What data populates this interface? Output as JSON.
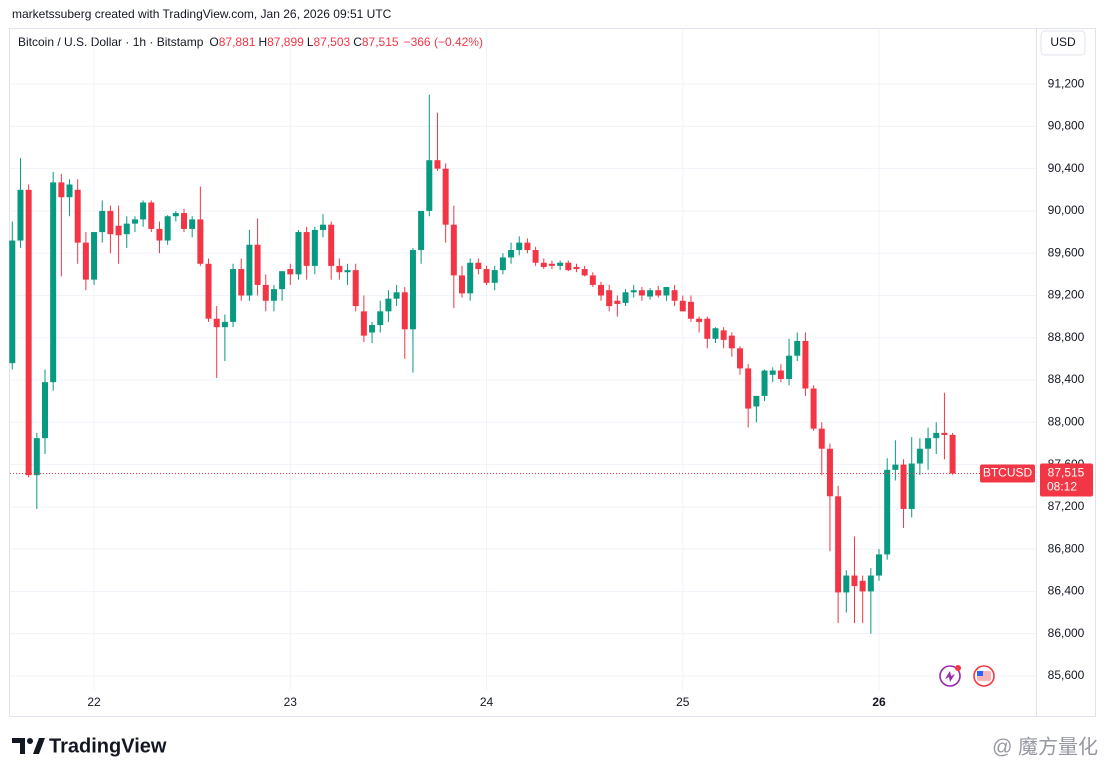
{
  "header": {
    "attribution": "marketssuberg created with TradingView.com, Jan 26, 2026 09:51 UTC",
    "symbol": "Bitcoin / U.S. Dollar · 1h · Bitstamp",
    "ohlc": [
      {
        "key": "O",
        "value": "87,881"
      },
      {
        "key": "H",
        "value": "87,899"
      },
      {
        "key": "L",
        "value": "87,503"
      },
      {
        "key": "C",
        "value": "87,515"
      }
    ],
    "change": "−366 (−0.42%)",
    "currency": "USD"
  },
  "brand": "TradingView",
  "watermark": "@ 魔方量化",
  "chart_data": {
    "type": "candlestick",
    "up_color": "#089981",
    "down_color": "#f23645",
    "grid": true,
    "xlim": [
      -10.28,
      115.2
    ],
    "ylim": [
      85221,
      91731
    ],
    "xticks": [
      {
        "value": 0,
        "label": "22"
      },
      {
        "value": 24,
        "label": "23"
      },
      {
        "value": 48,
        "label": "24"
      },
      {
        "value": 72,
        "label": "25"
      },
      {
        "value": 96,
        "label": "26",
        "bold": true
      }
    ],
    "yticks": [
      {
        "value": 85600,
        "label": "85,600"
      },
      {
        "value": 86000,
        "label": "86,000"
      },
      {
        "value": 86400,
        "label": "86,400"
      },
      {
        "value": 86800,
        "label": "86,800"
      },
      {
        "value": 87200,
        "label": "87,200"
      },
      {
        "value": 87600,
        "label": "87,600"
      },
      {
        "value": 88000,
        "label": "88,000"
      },
      {
        "value": 88400,
        "label": "88,400"
      },
      {
        "value": 88800,
        "label": "88,800"
      },
      {
        "value": 89200,
        "label": "89,200"
      },
      {
        "value": 89600,
        "label": "89,600"
      },
      {
        "value": 90000,
        "label": "90,000"
      },
      {
        "value": 90400,
        "label": "90,400"
      },
      {
        "value": 90800,
        "label": "90,800"
      },
      {
        "value": 91200,
        "label": "91,200"
      }
    ],
    "last_price": {
      "value": 87515,
      "label": "87,515",
      "symbol": "BTCUSD",
      "countdown": "08:12"
    },
    "x": [
      -10,
      -9,
      -8,
      -7,
      -6,
      -5,
      -4,
      -3,
      -2,
      -1,
      0,
      1,
      2,
      3,
      4,
      5,
      6,
      7,
      8,
      9,
      10,
      11,
      12,
      13,
      14,
      15,
      16,
      17,
      18,
      19,
      20,
      21,
      22,
      23,
      24,
      25,
      26,
      27,
      28,
      29,
      30,
      31,
      32,
      33,
      34,
      35,
      36,
      37,
      38,
      39,
      40,
      41,
      42,
      43,
      44,
      45,
      46,
      47,
      48,
      49,
      50,
      51,
      52,
      53,
      54,
      55,
      56,
      57,
      58,
      59,
      60,
      61,
      62,
      63,
      64,
      65,
      66,
      67,
      68,
      69,
      70,
      71,
      72,
      73,
      74,
      75,
      76,
      77,
      78,
      79,
      80,
      81,
      82,
      83,
      84,
      85,
      86,
      87,
      88,
      89,
      90,
      91,
      92,
      93,
      94,
      95,
      96,
      97,
      98,
      99,
      100,
      101,
      102,
      103,
      104,
      105
    ],
    "open": [
      88560,
      89720,
      90200,
      87500,
      87850,
      88380,
      90270,
      90130,
      90200,
      89700,
      89350,
      89800,
      90000,
      89860,
      89780,
      89880,
      89920,
      90080,
      89830,
      89720,
      89950,
      89980,
      89830,
      89920,
      89500,
      88980,
      88900,
      88950,
      89450,
      89200,
      89680,
      89300,
      89150,
      89260,
      89450,
      89400,
      89800,
      89480,
      89820,
      89870,
      89480,
      89420,
      89440,
      89050,
      88850,
      88920,
      89050,
      89170,
      89230,
      88880,
      89630,
      90000,
      90480,
      90400,
      89870,
      89390,
      89220,
      89510,
      89450,
      89320,
      89440,
      89560,
      89630,
      89700,
      89630,
      89510,
      89500,
      89480,
      89510,
      89470,
      89450,
      89390,
      89300,
      89250,
      89150,
      89130,
      89230,
      89250,
      89190,
      89250,
      89200,
      89250,
      89150,
      89140,
      88980,
      88980,
      88790,
      88870,
      88820,
      88700,
      88510,
      88150,
      88250,
      88450,
      88490,
      88410,
      88630,
      88770,
      88320,
      87940,
      87750,
      87300,
      86390,
      86550,
      86500,
      86400,
      86550,
      86750,
      87550,
      87600,
      87180,
      87610,
      87750,
      87850,
      87900,
      87881
    ],
    "high": [
      89900,
      90500,
      90250,
      87900,
      88500,
      90370,
      90350,
      90300,
      90300,
      89800,
      89800,
      90100,
      90050,
      90050,
      89950,
      89950,
      90100,
      90100,
      89900,
      89960,
      90000,
      90020,
      89950,
      90230,
      89550,
      89100,
      89020,
      89500,
      89550,
      89820,
      89930,
      89400,
      89300,
      89400,
      89500,
      89820,
      89850,
      89850,
      89970,
      89900,
      89550,
      89500,
      89500,
      89200,
      88950,
      89150,
      89250,
      89300,
      89280,
      89650,
      90000,
      91100,
      90930,
      90450,
      90050,
      89480,
      89550,
      89550,
      89480,
      89480,
      89600,
      89700,
      89760,
      89740,
      89660,
      89550,
      89530,
      89530,
      89530,
      89500,
      89480,
      89420,
      89330,
      89300,
      89200,
      89260,
      89300,
      89280,
      89270,
      89290,
      89280,
      89300,
      89200,
      89200,
      89000,
      89000,
      88900,
      88900,
      88850,
      88720,
      88550,
      88250,
      88500,
      88520,
      88550,
      88790,
      88850,
      88850,
      88350,
      88000,
      87800,
      87400,
      86600,
      86920,
      86550,
      86620,
      86800,
      87660,
      87830,
      87650,
      87860,
      87850,
      87950,
      88000,
      88280,
      87899
    ],
    "low": [
      88500,
      89650,
      87480,
      87180,
      87700,
      88300,
      89380,
      89950,
      89500,
      89250,
      89300,
      89700,
      89600,
      89500,
      89650,
      89800,
      89850,
      89800,
      89600,
      89680,
      89900,
      89800,
      89750,
      89480,
      88950,
      88420,
      88580,
      88900,
      89150,
      89150,
      89200,
      89050,
      89050,
      89150,
      89300,
      89350,
      89350,
      89400,
      89750,
      89350,
      89350,
      89300,
      89050,
      88760,
      88750,
      88850,
      88950,
      89100,
      88600,
      88470,
      89500,
      89950,
      90380,
      89700,
      89080,
      89180,
      89150,
      89400,
      89300,
      89250,
      89400,
      89500,
      89580,
      89600,
      89480,
      89450,
      89450,
      89440,
      89430,
      89420,
      89380,
      89280,
      89150,
      89050,
      89000,
      89100,
      89180,
      89150,
      89160,
      89180,
      89150,
      89100,
      89050,
      88950,
      88850,
      88700,
      88750,
      88700,
      88620,
      88450,
      87950,
      88000,
      88200,
      88380,
      88380,
      88350,
      88580,
      88250,
      87920,
      87500,
      86780,
      86100,
      86200,
      86100,
      86100,
      86000,
      86500,
      86700,
      87450,
      87000,
      87100,
      87500,
      87550,
      87700,
      87650,
      87503
    ],
    "close": [
      89720,
      90200,
      87500,
      87850,
      88380,
      90270,
      90130,
      90250,
      89700,
      89350,
      89800,
      90000,
      89780,
      89770,
      89880,
      89920,
      90080,
      89830,
      89720,
      89950,
      89980,
      89830,
      89920,
      89500,
      88980,
      88900,
      88950,
      89450,
      89200,
      89680,
      89300,
      89150,
      89260,
      89430,
      89400,
      89800,
      89480,
      89820,
      89870,
      89480,
      89420,
      89440,
      89100,
      88820,
      88920,
      89050,
      89170,
      89230,
      88880,
      89630,
      90000,
      90480,
      90400,
      89870,
      89390,
      89220,
      89510,
      89450,
      89320,
      89440,
      89560,
      89630,
      89700,
      89630,
      89510,
      89470,
      89480,
      89510,
      89440,
      89450,
      89390,
      89300,
      89200,
      89100,
      89120,
      89230,
      89250,
      89200,
      89250,
      89200,
      89280,
      89150,
      89050,
      88980,
      88950,
      88790,
      88890,
      88780,
      88700,
      88510,
      88130,
      88250,
      88490,
      88490,
      88410,
      88630,
      88770,
      88320,
      87940,
      87750,
      87300,
      86390,
      86550,
      86450,
      86400,
      86550,
      86750,
      87550,
      87600,
      87180,
      87610,
      87750,
      87850,
      87900,
      87880,
      87515
    ]
  }
}
